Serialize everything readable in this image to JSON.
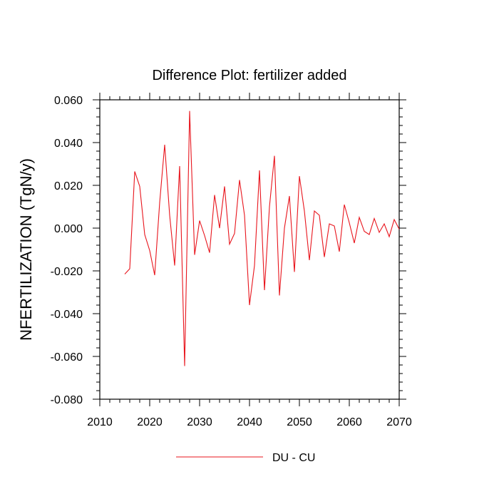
{
  "chart_data": {
    "type": "line",
    "title": "Difference Plot: fertilizer added",
    "ylabel": "NFERTILIZATION  (TgN/y)",
    "xlabel": "",
    "xlim": [
      2010,
      2070
    ],
    "ylim": [
      -0.08,
      0.06
    ],
    "x_ticks": [
      2010,
      2020,
      2030,
      2040,
      2050,
      2060,
      2070
    ],
    "x_tick_labels": [
      "2010",
      "2020",
      "2030",
      "2040",
      "2050",
      "2060",
      "2070"
    ],
    "y_ticks": [
      -0.08,
      -0.06,
      -0.04,
      -0.02,
      0.0,
      0.02,
      0.04,
      0.06
    ],
    "y_tick_labels": [
      "-0.080",
      "-0.060",
      "-0.040",
      "-0.020",
      "0.000",
      "0.020",
      "0.040",
      "0.060"
    ],
    "grid": false,
    "legend_position": "bottom",
    "series": [
      {
        "name": "DU - CU",
        "color": "#e8141c",
        "x": [
          2015,
          2016,
          2017,
          2018,
          2019,
          2020,
          2021,
          2022,
          2023,
          2024,
          2025,
          2026,
          2027,
          2028,
          2029,
          2030,
          2031,
          2032,
          2033,
          2034,
          2035,
          2036,
          2037,
          2038,
          2039,
          2040,
          2041,
          2042,
          2043,
          2044,
          2045,
          2046,
          2047,
          2048,
          2049,
          2050,
          2051,
          2052,
          2053,
          2054,
          2055,
          2056,
          2057,
          2058,
          2059,
          2060,
          2061,
          2062,
          2063,
          2064,
          2065,
          2066,
          2067,
          2068,
          2069,
          2070
        ],
        "values": [
          -0.0215,
          -0.019,
          0.0265,
          0.0195,
          -0.003,
          -0.0105,
          -0.022,
          0.012,
          0.039,
          0.006,
          -0.0175,
          0.029,
          -0.0645,
          0.0548,
          -0.0125,
          0.0035,
          -0.0035,
          -0.0115,
          0.0155,
          0.0,
          0.0195,
          -0.0075,
          -0.0025,
          0.0225,
          0.006,
          -0.036,
          -0.0175,
          0.027,
          -0.029,
          0.01,
          0.0338,
          -0.0315,
          0.0,
          0.015,
          -0.0205,
          0.0243,
          0.008,
          -0.015,
          0.008,
          0.006,
          -0.0135,
          0.002,
          0.001,
          -0.011,
          0.011,
          0.0025,
          -0.007,
          0.005,
          -0.0015,
          -0.003,
          0.0045,
          -0.002,
          0.002,
          -0.004,
          0.004,
          -0.0005
        ]
      }
    ]
  }
}
